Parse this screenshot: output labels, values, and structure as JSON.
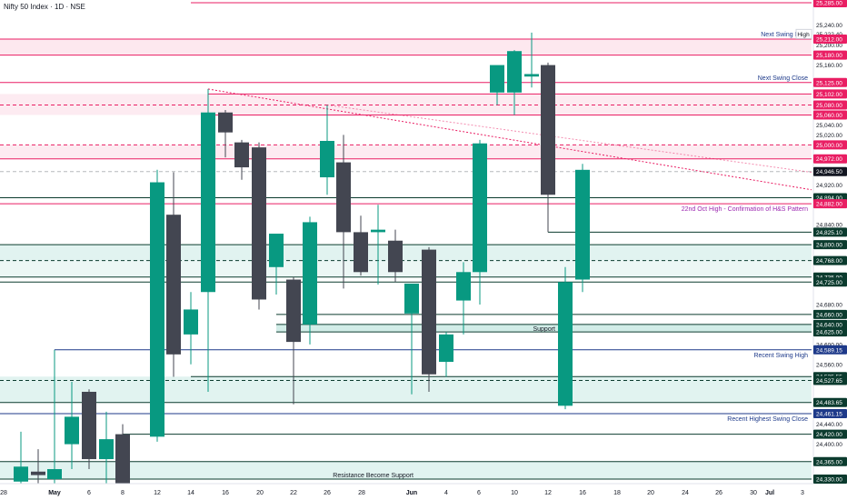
{
  "header": {
    "title": "Nifty 50 Index · 1D · NSE"
  },
  "chart_data": {
    "type": "candlestick",
    "ylim": [
      24310,
      25290
    ],
    "price_ticks": [
      25240,
      25222.4,
      25200,
      25160,
      25040,
      25020,
      24920,
      24840,
      24680,
      24600,
      24560,
      24440,
      24400
    ],
    "x_ticks": [
      {
        "label": "28",
        "x": 4
      },
      {
        "label": "May",
        "x": 60,
        "bold": true
      },
      {
        "label": "6",
        "x": 98
      },
      {
        "label": "8",
        "x": 135
      },
      {
        "label": "12",
        "x": 173
      },
      {
        "label": "14",
        "x": 210
      },
      {
        "label": "16",
        "x": 248
      },
      {
        "label": "20",
        "x": 286
      },
      {
        "label": "22",
        "x": 323
      },
      {
        "label": "26",
        "x": 360
      },
      {
        "label": "28",
        "x": 398
      },
      {
        "label": "Jun",
        "x": 453,
        "bold": true
      },
      {
        "label": "4",
        "x": 491
      },
      {
        "label": "6",
        "x": 527
      },
      {
        "label": "10",
        "x": 566
      },
      {
        "label": "12",
        "x": 603
      },
      {
        "label": "16",
        "x": 641
      },
      {
        "label": "18",
        "x": 679
      },
      {
        "label": "20",
        "x": 716
      },
      {
        "label": "24",
        "x": 754
      },
      {
        "label": "26",
        "x": 791
      },
      {
        "label": "30",
        "x": 829
      },
      {
        "label": "Jul",
        "x": 847,
        "bold": true
      },
      {
        "label": "3",
        "x": 883
      }
    ],
    "candles": [
      {
        "x": 23,
        "o": 24325,
        "h": 24425,
        "l": 24310,
        "c": 24355
      },
      {
        "x": 42,
        "o": 24345,
        "h": 24390,
        "l": 24310,
        "c": 24338
      },
      {
        "x": 60,
        "o": 24330,
        "h": 24589,
        "l": 24310,
        "c": 24350
      },
      {
        "x": 79,
        "o": 24400,
        "h": 24525,
        "l": 24350,
        "c": 24455
      },
      {
        "x": 98,
        "o": 24505,
        "h": 24510,
        "l": 24350,
        "c": 24370
      },
      {
        "x": 117,
        "o": 24370,
        "h": 24465,
        "l": 24310,
        "c": 24410
      },
      {
        "x": 135,
        "o": 24420,
        "h": 24440,
        "l": 24310,
        "c": 24315
      },
      {
        "x": 173,
        "o": 24415,
        "h": 24950,
        "l": 24405,
        "c": 24925
      },
      {
        "x": 191,
        "o": 24860,
        "h": 24945,
        "l": 24535,
        "c": 24580
      },
      {
        "x": 210,
        "o": 24620,
        "h": 24705,
        "l": 24560,
        "c": 24670
      },
      {
        "x": 229,
        "o": 24705,
        "h": 25112,
        "l": 24505,
        "c": 25065
      },
      {
        "x": 248,
        "o": 25065,
        "h": 25070,
        "l": 24975,
        "c": 25025
      },
      {
        "x": 266,
        "o": 25005,
        "h": 25010,
        "l": 24930,
        "c": 24955
      },
      {
        "x": 285,
        "o": 24995,
        "h": 25005,
        "l": 24670,
        "c": 24690
      },
      {
        "x": 304,
        "o": 24755,
        "h": 24815,
        "l": 24700,
        "c": 24822
      },
      {
        "x": 323,
        "o": 24730,
        "h": 24735,
        "l": 24480,
        "c": 24605
      },
      {
        "x": 341,
        "o": 24640,
        "h": 24856,
        "l": 24600,
        "c": 24845
      },
      {
        "x": 360,
        "o": 24935,
        "h": 25080,
        "l": 24900,
        "c": 25008
      },
      {
        "x": 378,
        "o": 24965,
        "h": 25020,
        "l": 24712,
        "c": 24825
      },
      {
        "x": 397,
        "o": 24825,
        "h": 24858,
        "l": 24738,
        "c": 24745
      },
      {
        "x": 416,
        "o": 24825,
        "h": 24880,
        "l": 24720,
        "c": 24830
      },
      {
        "x": 435,
        "o": 24808,
        "h": 24830,
        "l": 24725,
        "c": 24745
      },
      {
        "x": 453,
        "o": 24662,
        "h": 24720,
        "l": 24500,
        "c": 24722
      },
      {
        "x": 472,
        "o": 24790,
        "h": 24795,
        "l": 24505,
        "c": 24540
      },
      {
        "x": 491,
        "o": 24565,
        "h": 24625,
        "l": 24535,
        "c": 24620
      },
      {
        "x": 510,
        "o": 24688,
        "h": 24765,
        "l": 24620,
        "c": 24745
      },
      {
        "x": 528,
        "o": 24745,
        "h": 25010,
        "l": 24680,
        "c": 25003
      },
      {
        "x": 547,
        "o": 25105,
        "h": 25155,
        "l": 25080,
        "c": 25160
      },
      {
        "x": 566,
        "o": 25105,
        "h": 25190,
        "l": 25060,
        "c": 25188
      },
      {
        "x": 585,
        "o": 25137,
        "h": 25225,
        "l": 25115,
        "c": 25142
      },
      {
        "x": 603,
        "o": 25160,
        "h": 25165,
        "l": 24825,
        "c": 24900
      },
      {
        "x": 622,
        "o": 24477,
        "h": 24755,
        "l": 24470,
        "c": 24725
      },
      {
        "x": 641,
        "o": 24730,
        "h": 24962,
        "l": 24705,
        "c": 24950
      }
    ],
    "levels": [
      {
        "price": 25285,
        "color": "#e91e63",
        "label": "25,285.00"
      },
      {
        "price": 25212,
        "color": "#e91e63",
        "label": "25,212.00"
      },
      {
        "price": 25180,
        "color": "#e91e63",
        "label": "25,180.00"
      },
      {
        "price": 25125,
        "color": "#e91e63",
        "label": "25,125.00"
      },
      {
        "price": 25102,
        "color": "#e91e63",
        "label": "25,102.00"
      },
      {
        "price": 25080,
        "color": "#e91e63",
        "label": "25,080.00"
      },
      {
        "price": 25060,
        "color": "#e91e63",
        "label": "25,060.00"
      },
      {
        "price": 25000,
        "color": "#e91e63",
        "label": "25,000.00"
      },
      {
        "price": 24972,
        "color": "#e91e63",
        "label": "24,972.00"
      },
      {
        "price": 24946.5,
        "color": "#131722",
        "label": "24,946.50"
      },
      {
        "price": 24894,
        "color": "#0b3b2e",
        "label": "24,894.00"
      },
      {
        "price": 24882,
        "color": "#e91e63",
        "label": "24,882.00"
      },
      {
        "price": 24825.1,
        "color": "#0b3b2e",
        "label": "24,825.10"
      },
      {
        "price": 24800,
        "color": "#0b3b2e",
        "label": "24,800.00"
      },
      {
        "price": 24768,
        "color": "#0b3b2e",
        "label": "24,768.00"
      },
      {
        "price": 24735,
        "color": "#0b3b2e",
        "label": "24,735.00"
      },
      {
        "price": 24725,
        "color": "#0b3b2e",
        "label": "24,725.00"
      },
      {
        "price": 24660,
        "color": "#0b3b2e",
        "label": "24,660.00"
      },
      {
        "price": 24640,
        "color": "#0b3b2e",
        "label": "24,640.00"
      },
      {
        "price": 24625,
        "color": "#0b3b2e",
        "label": "24,625.00"
      },
      {
        "price": 24589.15,
        "color": "#1e3a8a",
        "label": "24,589.15"
      },
      {
        "price": 24535.55,
        "color": "#0b3b2e",
        "label": "24,535.55"
      },
      {
        "price": 24527.65,
        "color": "#0b3b2e",
        "label": "24,527.65"
      },
      {
        "price": 24483.65,
        "color": "#0b3b2e",
        "label": "24,483.65"
      },
      {
        "price": 24461.15,
        "color": "#1e3a8a",
        "label": "24,461.15"
      },
      {
        "price": 24420,
        "color": "#0b3b2e",
        "label": "24,420.00"
      },
      {
        "price": 24365,
        "color": "#0b3b2e",
        "label": "24,365.00"
      },
      {
        "price": 24330,
        "color": "#0b3b2e",
        "label": "24,330.00"
      }
    ],
    "annotations": [
      {
        "text": "Next Swing High",
        "price": 25222.4,
        "color": "#1e3a8a"
      },
      {
        "text": "Next Swing Close",
        "price": 25135,
        "color": "#1e3a8a"
      },
      {
        "text": "22nd Oct High - Confirmation of H&S Pattern",
        "price": 24872,
        "color": "#9c27b0"
      },
      {
        "text": "Support",
        "price": 24632,
        "color": "#131722"
      },
      {
        "text": "Recent Swing High",
        "price": 24579,
        "color": "#1e3a8a"
      },
      {
        "text": "Recent Highest Swing Close",
        "price": 24451,
        "color": "#1e3a8a"
      },
      {
        "text": "Resistance Become Support",
        "price": 24338,
        "color": "#131722"
      }
    ],
    "colors": {
      "up": "#089981",
      "down": "#434651",
      "pink": "#e91e63",
      "navy": "#1e3a8a",
      "dark": "#0b3b2e"
    }
  }
}
